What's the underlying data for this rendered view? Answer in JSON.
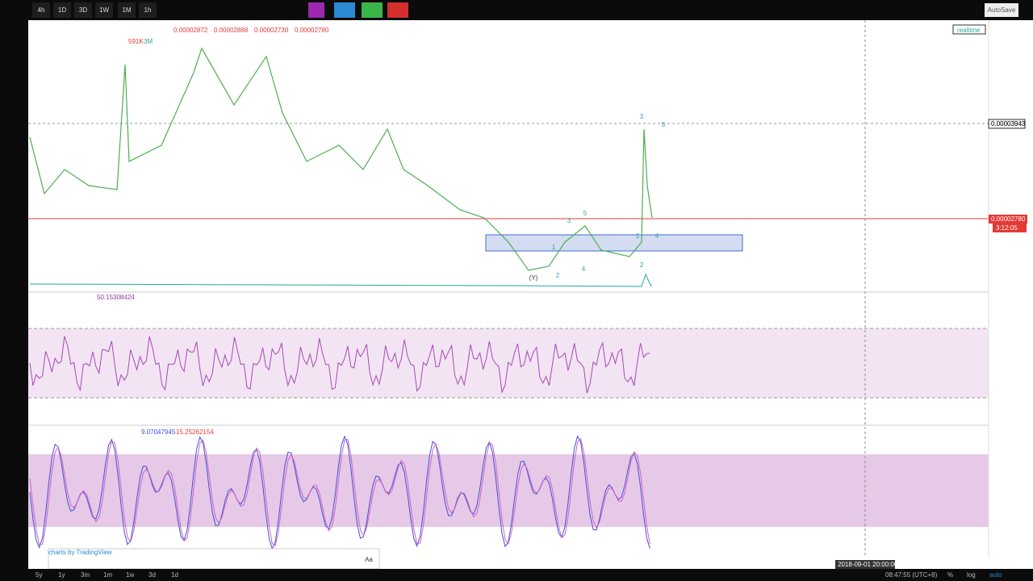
{
  "toolbar": {
    "intervals": [
      "4h",
      "1D",
      "3D",
      "1W",
      "1M",
      "1h"
    ],
    "autosave": "AutoSave"
  },
  "chart": {
    "realtime": "realtime",
    "ohlc": [
      "0.00002872",
      "0.00002888",
      "0.00002730",
      "0.00002780"
    ],
    "volume": [
      "591K",
      "3M"
    ],
    "rsi": "50.15308424",
    "stoch": [
      "9.07047945",
      "15.25262154"
    ],
    "price_labels": [
      "0.00003943",
      "0.00002780",
      "3:12:05"
    ],
    "wave_labels": [
      "3",
      "5",
      "3",
      "5",
      "1",
      "1",
      "4",
      "2",
      "4",
      "2",
      "(Y)"
    ],
    "crosshair_date": "2018-09-01 20:00:00",
    "watermark": "charts by TradingView",
    "text_tool": "Aa"
  },
  "bottom_bar": {
    "ranges": [
      "5y",
      "1y",
      "3m",
      "1m",
      "1w",
      "3d",
      "1d"
    ],
    "time": "08:47:55 (UTC+8)",
    "options": [
      "%",
      "log",
      "auto"
    ]
  }
}
